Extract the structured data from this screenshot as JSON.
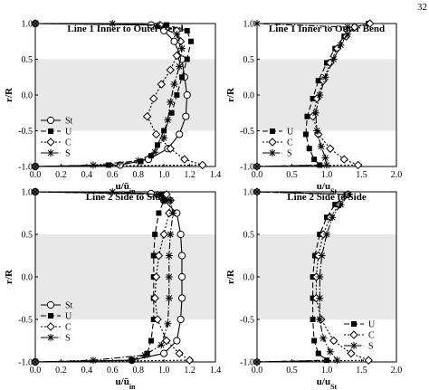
{
  "page_number": "32",
  "series_styles": {
    "St": {
      "marker": "circle",
      "dash": "",
      "color": "#000000"
    },
    "U": {
      "marker": "square",
      "dash": "6,3",
      "color": "#000000"
    },
    "C": {
      "marker": "diamond",
      "dash": "2,2",
      "color": "#000000"
    },
    "S": {
      "marker": "star",
      "dash": "7,2,1.5,2",
      "color": "#000000"
    }
  },
  "shade_color": "#e8e8e8",
  "chart_data": [
    {
      "type": "line",
      "title": "Line 1 Inner to Outer Bend",
      "xlabel": "u/ū_in",
      "ylabel": "r/R",
      "xlim": [
        0,
        1.4
      ],
      "ylim": [
        -1,
        1
      ],
      "xticks": [
        "0.0",
        "0.2",
        "0.4",
        "0.6",
        "0.8",
        "1.0",
        "1.2",
        "1.4"
      ],
      "yticks": [
        "1.0",
        "0.5",
        "0.0",
        "-0.5",
        "-1.0"
      ],
      "shaded_band": [
        -0.5,
        0.5
      ],
      "legend": {
        "position": "bottom-left",
        "entries": [
          "St",
          "U",
          "C",
          "S"
        ]
      },
      "series": [
        {
          "name": "St",
          "points": [
            [
              0.0,
              -1.0
            ],
            [
              0.66,
              -0.98
            ],
            [
              0.88,
              -0.9
            ],
            [
              1.03,
              -0.75
            ],
            [
              1.12,
              -0.55
            ],
            [
              1.17,
              -0.3
            ],
            [
              1.18,
              0.0
            ],
            [
              1.16,
              0.25
            ],
            [
              1.14,
              0.5
            ],
            [
              1.08,
              0.75
            ],
            [
              1.0,
              0.9
            ],
            [
              0.9,
              0.98
            ],
            [
              0.0,
              1.0
            ]
          ]
        },
        {
          "name": "U",
          "points": [
            [
              0.0,
              -1.0
            ],
            [
              0.57,
              -0.98
            ],
            [
              0.82,
              -0.93
            ],
            [
              0.9,
              -0.85
            ],
            [
              0.95,
              -0.7
            ],
            [
              1.0,
              -0.5
            ],
            [
              1.06,
              -0.25
            ],
            [
              1.1,
              0.0
            ],
            [
              1.14,
              0.25
            ],
            [
              1.18,
              0.5
            ],
            [
              1.21,
              0.75
            ],
            [
              1.18,
              0.9
            ],
            [
              1.02,
              0.98
            ],
            [
              0.0,
              1.0
            ]
          ]
        },
        {
          "name": "C",
          "points": [
            [
              0.0,
              -1.0
            ],
            [
              1.3,
              -0.98
            ],
            [
              1.16,
              -0.9
            ],
            [
              1.05,
              -0.75
            ],
            [
              0.94,
              -0.55
            ],
            [
              0.87,
              -0.3
            ],
            [
              0.92,
              -0.05
            ],
            [
              0.98,
              0.15
            ],
            [
              1.05,
              0.35
            ],
            [
              1.1,
              0.55
            ],
            [
              1.13,
              0.75
            ],
            [
              1.1,
              0.9
            ],
            [
              0.97,
              0.98
            ],
            [
              0.0,
              1.0
            ]
          ]
        },
        {
          "name": "S",
          "points": [
            [
              0.0,
              -1.0
            ],
            [
              0.45,
              -0.98
            ],
            [
              0.8,
              -0.92
            ],
            [
              0.93,
              -0.8
            ],
            [
              1.0,
              -0.6
            ],
            [
              1.03,
              -0.35
            ],
            [
              1.05,
              -0.1
            ],
            [
              1.08,
              0.15
            ],
            [
              1.12,
              0.4
            ],
            [
              1.14,
              0.65
            ],
            [
              1.1,
              0.85
            ],
            [
              0.95,
              0.97
            ],
            [
              0.6,
              1.0
            ],
            [
              0.0,
              1.0
            ]
          ]
        }
      ]
    },
    {
      "type": "line",
      "title": "Line 1 Inner to Outer Bend",
      "xlabel": "u/u_St",
      "ylabel": "r/R",
      "xlim": [
        0,
        2.0
      ],
      "ylim": [
        -1,
        1
      ],
      "xticks": [
        "0.0",
        "0.5",
        "1.0",
        "1.5",
        "2.0"
      ],
      "yticks": [
        "1.0",
        "0.5",
        "0.0",
        "-0.5",
        "-1.0"
      ],
      "shaded_band": [
        -0.5,
        0.5
      ],
      "legend": {
        "position": "bottom-left",
        "entries": [
          "U",
          "C",
          "S"
        ]
      },
      "series": [
        {
          "name": "U",
          "points": [
            [
              0.0,
              -1.0
            ],
            [
              0.9,
              -0.98
            ],
            [
              0.82,
              -0.9
            ],
            [
              0.75,
              -0.75
            ],
            [
              0.7,
              -0.55
            ],
            [
              0.72,
              -0.3
            ],
            [
              0.8,
              -0.05
            ],
            [
              0.88,
              0.2
            ],
            [
              1.0,
              0.45
            ],
            [
              1.12,
              0.65
            ],
            [
              1.25,
              0.82
            ],
            [
              1.4,
              0.95
            ],
            [
              1.6,
              1.0
            ]
          ]
        },
        {
          "name": "C",
          "points": [
            [
              0.0,
              -1.0
            ],
            [
              1.45,
              -0.98
            ],
            [
              1.25,
              -0.9
            ],
            [
              1.05,
              -0.75
            ],
            [
              0.88,
              -0.55
            ],
            [
              0.8,
              -0.3
            ],
            [
              0.86,
              -0.05
            ],
            [
              0.95,
              0.2
            ],
            [
              1.05,
              0.45
            ],
            [
              1.15,
              0.65
            ],
            [
              1.28,
              0.82
            ],
            [
              1.4,
              0.95
            ],
            [
              1.62,
              1.0
            ]
          ]
        },
        {
          "name": "S",
          "points": [
            [
              0.0,
              -1.0
            ],
            [
              1.0,
              -0.98
            ],
            [
              0.98,
              -0.88
            ],
            [
              0.92,
              -0.72
            ],
            [
              0.86,
              -0.5
            ],
            [
              0.84,
              -0.25
            ],
            [
              0.9,
              0.0
            ],
            [
              0.98,
              0.25
            ],
            [
              1.1,
              0.5
            ],
            [
              1.2,
              0.7
            ],
            [
              1.3,
              0.85
            ],
            [
              1.3,
              0.95
            ],
            [
              0.0,
              1.0
            ]
          ]
        }
      ]
    },
    {
      "type": "line",
      "title": "Line 2 Side to Side",
      "xlabel": "u/ū_in",
      "ylabel": "r/R",
      "xlim": [
        0,
        1.4
      ],
      "ylim": [
        -1,
        1
      ],
      "xticks": [
        "0.0",
        "0.2",
        "0.4",
        "0.6",
        "0.8",
        "1.0",
        "1.2",
        "1.4"
      ],
      "yticks": [
        "1.0",
        "0.5",
        "0.0",
        "-0.5",
        "-1.0"
      ],
      "shaded_band": [
        -0.5,
        0.5
      ],
      "legend": {
        "position": "bottom-left",
        "entries": [
          "St",
          "U",
          "C",
          "S"
        ]
      },
      "series": [
        {
          "name": "St",
          "points": [
            [
              0.0,
              -1.0
            ],
            [
              0.75,
              -0.98
            ],
            [
              1.0,
              -0.9
            ],
            [
              1.1,
              -0.75
            ],
            [
              1.13,
              -0.5
            ],
            [
              1.14,
              -0.25
            ],
            [
              1.14,
              0.0
            ],
            [
              1.14,
              0.25
            ],
            [
              1.13,
              0.5
            ],
            [
              1.1,
              0.75
            ],
            [
              1.0,
              0.9
            ],
            [
              0.9,
              0.98
            ],
            [
              0.0,
              1.0
            ]
          ]
        },
        {
          "name": "U",
          "points": [
            [
              0.0,
              -1.0
            ],
            [
              0.75,
              -0.98
            ],
            [
              0.87,
              -0.9
            ],
            [
              0.9,
              -0.75
            ],
            [
              0.92,
              -0.5
            ],
            [
              0.92,
              -0.25
            ],
            [
              0.92,
              0.0
            ],
            [
              0.92,
              0.25
            ],
            [
              0.93,
              0.5
            ],
            [
              0.96,
              0.75
            ],
            [
              1.0,
              0.9
            ],
            [
              0.98,
              0.97
            ],
            [
              0.0,
              1.0
            ]
          ]
        },
        {
          "name": "C",
          "points": [
            [
              0.0,
              -1.0
            ],
            [
              1.2,
              -0.98
            ],
            [
              1.12,
              -0.9
            ],
            [
              1.02,
              -0.75
            ],
            [
              0.95,
              -0.5
            ],
            [
              0.93,
              -0.25
            ],
            [
              0.94,
              0.0
            ],
            [
              0.96,
              0.25
            ],
            [
              1.0,
              0.5
            ],
            [
              1.04,
              0.75
            ],
            [
              1.05,
              0.9
            ],
            [
              1.02,
              0.97
            ],
            [
              0.0,
              1.0
            ]
          ]
        },
        {
          "name": "S",
          "points": [
            [
              0.0,
              -1.0
            ],
            [
              0.45,
              -0.98
            ],
            [
              0.85,
              -0.92
            ],
            [
              0.98,
              -0.8
            ],
            [
              1.03,
              -0.55
            ],
            [
              1.04,
              -0.25
            ],
            [
              1.04,
              0.0
            ],
            [
              1.04,
              0.25
            ],
            [
              1.05,
              0.5
            ],
            [
              1.07,
              0.75
            ],
            [
              1.05,
              0.9
            ],
            [
              0.95,
              0.97
            ],
            [
              0.6,
              1.0
            ],
            [
              0.0,
              1.0
            ]
          ]
        }
      ]
    },
    {
      "type": "line",
      "title": "Line 2 Side to Side",
      "xlabel": "u/u_St",
      "ylabel": "r/R",
      "xlim": [
        0,
        2.0
      ],
      "ylim": [
        -1,
        1
      ],
      "xticks": [
        "0.0",
        "0.5",
        "1.0",
        "1.5",
        "2.0"
      ],
      "yticks": [
        "1.0",
        "0.5",
        "0.0",
        "-0.5",
        "-1.0"
      ],
      "shaded_band": [
        -0.5,
        0.5
      ],
      "legend": {
        "position": "bottom-right",
        "entries": [
          "U",
          "C",
          "S"
        ]
      },
      "series": [
        {
          "name": "U",
          "points": [
            [
              0.0,
              -1.0
            ],
            [
              1.0,
              -0.98
            ],
            [
              0.88,
              -0.9
            ],
            [
              0.82,
              -0.75
            ],
            [
              0.8,
              -0.5
            ],
            [
              0.8,
              -0.25
            ],
            [
              0.8,
              0.0
            ],
            [
              0.83,
              0.25
            ],
            [
              0.9,
              0.5
            ],
            [
              1.0,
              0.7
            ],
            [
              1.12,
              0.85
            ],
            [
              1.28,
              0.97
            ],
            [
              0.0,
              1.0
            ]
          ]
        },
        {
          "name": "C",
          "points": [
            [
              0.0,
              -1.0
            ],
            [
              1.6,
              -0.98
            ],
            [
              1.35,
              -0.9
            ],
            [
              1.1,
              -0.75
            ],
            [
              0.92,
              -0.5
            ],
            [
              0.85,
              -0.25
            ],
            [
              0.85,
              0.0
            ],
            [
              0.88,
              0.25
            ],
            [
              0.95,
              0.5
            ],
            [
              1.05,
              0.7
            ],
            [
              1.18,
              0.85
            ],
            [
              1.3,
              0.97
            ],
            [
              0.0,
              1.0
            ]
          ]
        },
        {
          "name": "S",
          "points": [
            [
              0.0,
              -1.0
            ],
            [
              1.15,
              -0.98
            ],
            [
              1.05,
              -0.88
            ],
            [
              0.95,
              -0.72
            ],
            [
              0.9,
              -0.5
            ],
            [
              0.9,
              -0.25
            ],
            [
              0.9,
              0.0
            ],
            [
              0.93,
              0.25
            ],
            [
              1.0,
              0.5
            ],
            [
              1.08,
              0.7
            ],
            [
              1.2,
              0.85
            ],
            [
              1.32,
              0.97
            ],
            [
              0.0,
              1.0
            ]
          ]
        }
      ]
    }
  ]
}
